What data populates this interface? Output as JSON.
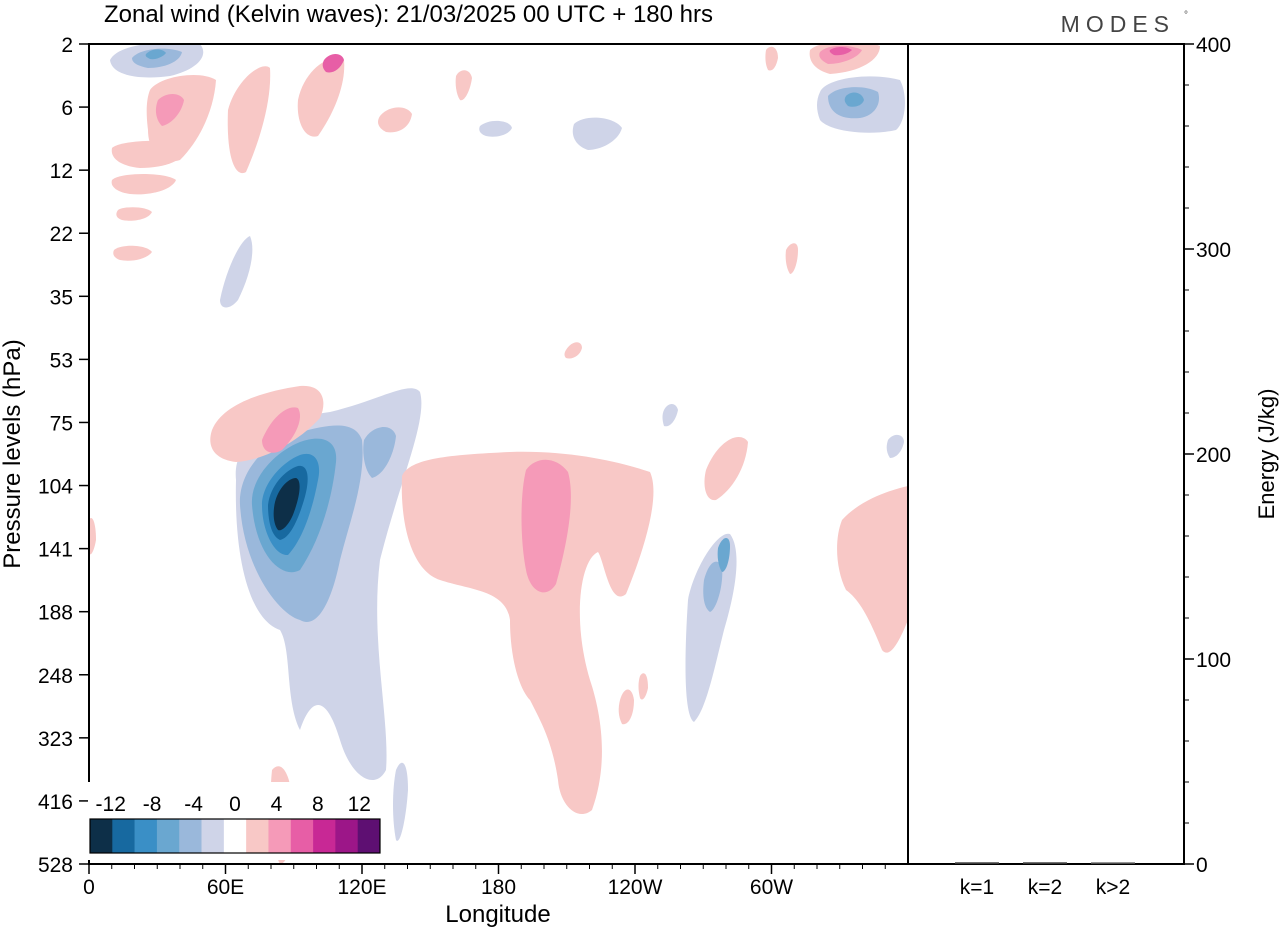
{
  "title": "Zonal wind (Kelvin waves):  21/03/2025  00 UTC  + 180 hrs",
  "brand": "MODES",
  "brand_mark": "°",
  "chart_data": [
    {
      "type": "heatmap",
      "title": "Zonal wind (Kelvin waves):  21/03/2025  00 UTC  + 180 hrs",
      "xlabel": "Longitude",
      "ylabel": "Pressure levels (hPa)",
      "x_ticks": [
        "0",
        "60E",
        "120E",
        "180",
        "120W",
        "60W"
      ],
      "x_tick_values": [
        0,
        60,
        120,
        180,
        240,
        300
      ],
      "xlim": [
        0,
        360
      ],
      "y_ticks": [
        "2",
        "6",
        "12",
        "22",
        "35",
        "53",
        "75",
        "104",
        "141",
        "188",
        "248",
        "323",
        "416",
        "528"
      ],
      "y_scale": "model levels (top 2 hPa, bottom 528 hPa)",
      "colorbar": {
        "tick_labels": [
          "-12",
          "-8",
          "-4",
          "0",
          "4",
          "8",
          "12"
        ],
        "tick_values": [
          -12,
          -8,
          -4,
          0,
          4,
          8,
          12
        ],
        "bins": [
          -14,
          -12,
          -10,
          -8,
          -6,
          -4,
          -2,
          2,
          4,
          6,
          8,
          10,
          12,
          14
        ],
        "colors": [
          "#0d2f48",
          "#1769a0",
          "#3a8fc6",
          "#6aa7d0",
          "#9ab8db",
          "#cfd4e8",
          "#ffffff",
          "#f8c8c6",
          "#f59ab8",
          "#e75ea6",
          "#c82895",
          "#9c1688",
          "#5e0f72"
        ]
      },
      "features": [
        {
          "sign": "negative",
          "peak": -12,
          "lon": 88,
          "level_hPa": 104
        },
        {
          "sign": "positive",
          "peak": 6,
          "lon": 195,
          "level_hPa": 141
        },
        {
          "sign": "positive",
          "peak": 6,
          "lon": 85,
          "level_hPa": 75
        },
        {
          "sign": "negative",
          "peak": -7,
          "lon": 338,
          "level_hPa": 6
        },
        {
          "sign": "positive",
          "peak": 8,
          "lon": 330,
          "level_hPa": 2
        },
        {
          "sign": "negative",
          "peak": -6,
          "lon": 28,
          "level_hPa": 2
        }
      ]
    },
    {
      "type": "bar",
      "ylabel": "Energy (J/kg)",
      "categories": [
        "k=1",
        "k=2",
        "k>2"
      ],
      "values": [
        0.4,
        0.4,
        0.3
      ],
      "ylim": [
        0,
        400
      ],
      "y_ticks": [
        "0",
        "100",
        "200",
        "300",
        "400"
      ],
      "y_tick_values": [
        0,
        100,
        200,
        300,
        400
      ]
    }
  ]
}
